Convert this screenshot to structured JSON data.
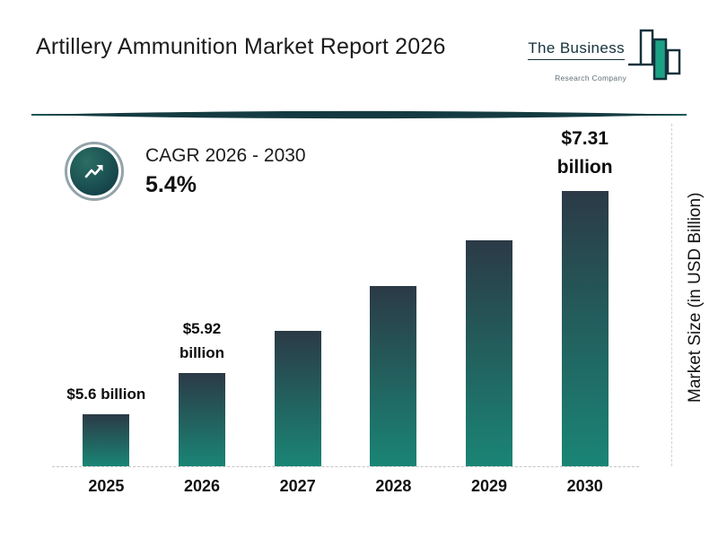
{
  "page": {
    "title": "Artillery Ammunition Market Report 2026"
  },
  "logo": {
    "name": "The Business",
    "subtitle": "Research Company"
  },
  "cagr": {
    "label": "CAGR 2026 - 2030",
    "value": "5.4%"
  },
  "chart_data": {
    "type": "bar",
    "title": "Artillery Ammunition Market Report 2026",
    "categories": [
      "2025",
      "2026",
      "2027",
      "2028",
      "2029",
      "2030"
    ],
    "values": [
      5.6,
      5.92,
      6.24,
      6.58,
      6.93,
      7.31
    ],
    "bar_labels": [
      "$5.6 billion",
      "$5.92 billion",
      "",
      "",
      "",
      "$7.31 billion"
    ],
    "xlabel": "",
    "ylabel": "Market Size (in USD Billion)",
    "ylim": [
      5.2,
      7.6
    ],
    "grid": "off",
    "legend": "none",
    "baseline_style": "dashed",
    "colors": {
      "bar_gradient_top": "#2b3a46",
      "bar_gradient_bottom": "#1a8575",
      "accent_teal": "#17494e",
      "divider": "#143b41",
      "text": "#111111"
    }
  }
}
